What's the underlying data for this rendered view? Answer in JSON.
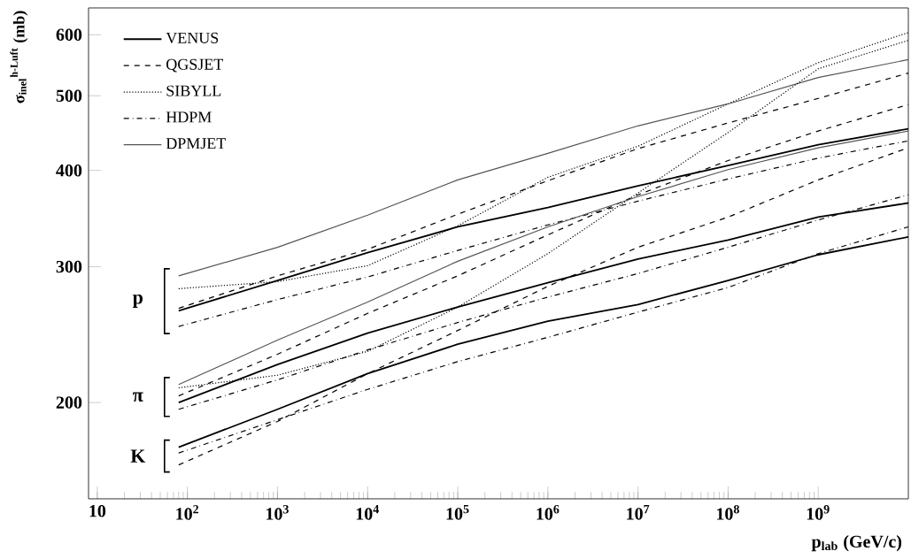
{
  "chart_data": {
    "type": "line",
    "ylabel": "σ$_{inel}$$^{h-Luft}$ (mb)",
    "xlabel": "p$_{lab}$ (GeV/c)",
    "x": [
      80,
      1000,
      10000,
      100000,
      1000000,
      10000000,
      100000000,
      1000000000,
      10000000000
    ],
    "series": [
      {
        "name": "VENUS",
        "color": "#000000",
        "line_style": "solid",
        "values": [
          263,
          288,
          313,
          338,
          358,
          382,
          406,
          432,
          453
        ]
      },
      {
        "name": "QGSJET",
        "color": "#000000",
        "line_style": "dashed",
        "values": [
          265,
          292,
          316,
          351,
          388,
          427,
          461,
          496,
          535
        ]
      },
      {
        "name": "SIBYLL",
        "color": "#000000",
        "line_style": "dotted",
        "values": [
          281,
          287,
          301,
          339,
          392,
          430,
          488,
          552,
          604
        ]
      },
      {
        "name": "HDPM",
        "color": "#000000",
        "line_style": "dashdot",
        "values": [
          251,
          272,
          291,
          315,
          340,
          365,
          390,
          415,
          437
        ]
      },
      {
        "name": "DPMJET",
        "color": "#555555",
        "line_style": "solid",
        "values": [
          292,
          318,
          350,
          389,
          421,
          457,
          488,
          528,
          557
        ]
      },
      {
        "color": "#000000",
        "line_style": "solid",
        "values": [
          200,
          224,
          246,
          266,
          286,
          307,
          325,
          348,
          363
        ]
      },
      {
        "color": "#000000",
        "line_style": "dashed",
        "values": [
          204,
          231,
          261,
          292,
          330,
          372,
          412,
          450,
          487
        ]
      },
      {
        "color": "#000000",
        "line_style": "dotted",
        "values": [
          209,
          217,
          233,
          266,
          312,
          374,
          448,
          542,
          590
        ]
      },
      {
        "color": "#000000",
        "line_style": "dashdot",
        "values": [
          196,
          214,
          234,
          254,
          274,
          294,
          318,
          345,
          372
        ]
      },
      {
        "color": "#555555",
        "line_style": "solid",
        "values": [
          211,
          241,
          270,
          305,
          338,
          370,
          401,
          428,
          450
        ]
      },
      {
        "color": "#000000",
        "line_style": "solid",
        "values": [
          175,
          196,
          218,
          238,
          255,
          268,
          288,
          311,
          328
        ]
      },
      {
        "color": "#000000",
        "line_style": "dashed",
        "values": [
          166,
          189,
          218,
          248,
          283,
          318,
          348,
          389,
          428
        ]
      },
      {
        "color": "#000000",
        "line_style": "dashdot",
        "values": [
          172,
          190,
          208,
          226,
          243,
          262,
          282,
          312,
          338
        ]
      }
    ],
    "annotations": [
      "p",
      "π",
      "K"
    ],
    "xlim": [
      8,
      10000000000
    ],
    "ylim": [
      150,
      650
    ],
    "xticks": [
      10,
      {
        "value": 100,
        "label": "10$^{2}$"
      },
      {
        "value": 1000,
        "label": "10$^{3}$"
      },
      {
        "value": 10000,
        "label": "10$^{4}$"
      },
      {
        "value": 100000,
        "label": "10$^{5}$"
      },
      {
        "value": 1000000,
        "label": "10$^{6}$"
      },
      {
        "value": 10000000,
        "label": "10$^{7}$"
      },
      {
        "value": 100000000,
        "label": "10$^{8}$"
      },
      {
        "value": 1000000000,
        "label": "10$^{9}$"
      }
    ],
    "yticks": [
      200,
      300,
      400,
      500,
      600
    ],
    "log": "xy",
    "grid": false,
    "legend": "top left"
  }
}
